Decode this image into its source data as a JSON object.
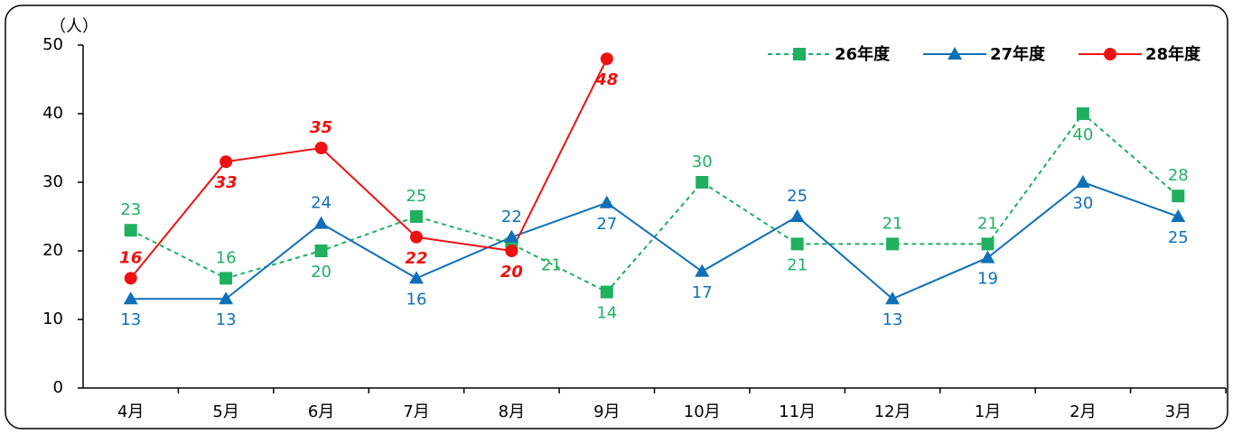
{
  "chart_data": {
    "type": "line",
    "y_unit": "（人）",
    "categories": [
      "4月",
      "5月",
      "6月",
      "7月",
      "8月",
      "9月",
      "10月",
      "11月",
      "12月",
      "1月",
      "2月",
      "3月"
    ],
    "series": [
      {
        "name": "26年度",
        "color": "#1fb060",
        "marker": "square",
        "dashed": true,
        "values": [
          23,
          16,
          20,
          25,
          21,
          14,
          30,
          21,
          21,
          21,
          40,
          28
        ]
      },
      {
        "name": "27年度",
        "color": "#0f6fb8",
        "marker": "triangle",
        "dashed": false,
        "values": [
          13,
          13,
          24,
          16,
          22,
          27,
          17,
          25,
          13,
          19,
          30,
          25
        ]
      },
      {
        "name": "28年度",
        "color": "#ee1111",
        "marker": "circle",
        "dashed": false,
        "values": [
          16,
          33,
          35,
          22,
          20,
          48,
          null,
          null,
          null,
          null,
          null,
          null
        ]
      }
    ],
    "ylim": [
      0,
      50
    ],
    "yticks": [
      0,
      10,
      20,
      30,
      40,
      50
    ],
    "grid": false,
    "legend": "top-right"
  }
}
